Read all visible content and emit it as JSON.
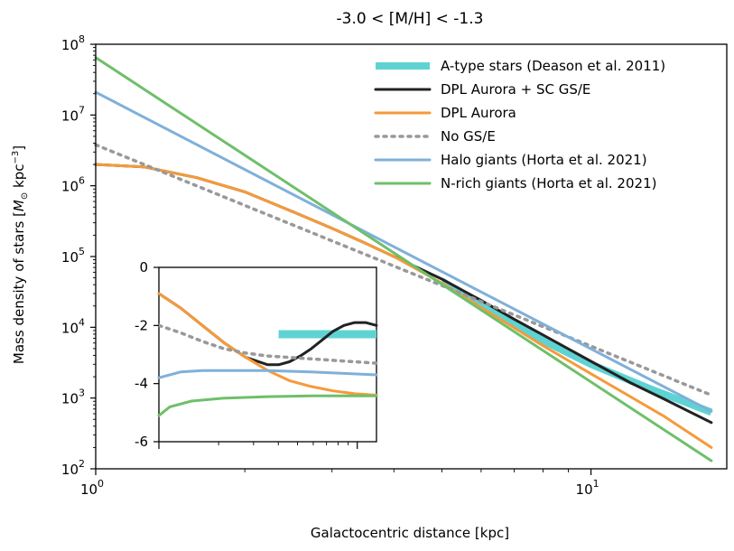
{
  "chart_data": {
    "type": "line",
    "title": "-3.0 < [M/H] < -1.3",
    "xlabel": "Galactocentric distance [kpc]",
    "ylabel": "Mass density of stars [M⊙ kpc−3]",
    "xscale": "log",
    "yscale": "log",
    "xlim": [
      1,
      18.8
    ],
    "ylim": [
      100,
      100000000
    ],
    "x_major_ticks": [
      {
        "value": 1,
        "base": "10",
        "exp": "0"
      },
      {
        "value": 10,
        "base": "10",
        "exp": "1"
      }
    ],
    "y_major_ticks": [
      {
        "value": 100,
        "base": "10",
        "exp": "2"
      },
      {
        "value": 1000,
        "base": "10",
        "exp": "3"
      },
      {
        "value": 10000,
        "base": "10",
        "exp": "4"
      },
      {
        "value": 100000,
        "base": "10",
        "exp": "5"
      },
      {
        "value": 1000000,
        "base": "10",
        "exp": "6"
      },
      {
        "value": 10000000,
        "base": "10",
        "exp": "7"
      },
      {
        "value": 100000000,
        "base": "10",
        "exp": "8"
      }
    ],
    "legend_position": "top-right",
    "series": [
      {
        "name": "A-type stars (Deason et al. 2011)",
        "color": "#5fd3d3",
        "dash": "solid",
        "style": "thick",
        "x": [
          5,
          6,
          8,
          10,
          13,
          17.5
        ],
        "y": [
          45000,
          20000,
          6500,
          3000,
          1400,
          630
        ]
      },
      {
        "name": "DPL Aurora + SC GS/E",
        "color": "#222222",
        "dash": "solid",
        "style": "normal",
        "x": [
          1,
          1.25,
          1.6,
          2,
          2.5,
          3,
          3.5,
          4,
          5,
          6,
          7,
          8,
          10,
          12,
          14,
          17.5
        ],
        "y": [
          2000000,
          1850000,
          1300000,
          820000,
          430000,
          250000,
          155000,
          100000,
          48000,
          24000,
          13000,
          7800,
          3300,
          1650,
          980,
          450
        ]
      },
      {
        "name": "DPL Aurora",
        "color": "#f59a3a",
        "dash": "solid",
        "style": "normal",
        "x": [
          1,
          1.25,
          1.6,
          2,
          2.5,
          3,
          3.5,
          4,
          5,
          6,
          7,
          8,
          10,
          12,
          14,
          17.5
        ],
        "y": [
          2000000,
          1850000,
          1300000,
          820000,
          430000,
          250000,
          155000,
          100000,
          42000,
          19000,
          9800,
          5500,
          2200,
          1050,
          560,
          200
        ]
      },
      {
        "name": "No GS/E",
        "color": "#999999",
        "dash": "dotted",
        "style": "normal",
        "x": [
          1,
          17.5
        ],
        "y": [
          3800000,
          1100
        ]
      },
      {
        "name": "Halo giants (Horta et al. 2021)",
        "color": "#7fb0d9",
        "dash": "solid",
        "style": "normal",
        "x": [
          1,
          17.5
        ],
        "y": [
          21000000,
          650
        ]
      },
      {
        "name": "N-rich giants (Horta et al. 2021)",
        "color": "#6fbf6a",
        "dash": "solid",
        "style": "normal",
        "x": [
          1,
          17.5
        ],
        "y": [
          65000000,
          130
        ]
      }
    ],
    "inset": {
      "ylim": [
        -6,
        0
      ],
      "y_ticks": [
        "0",
        "-2",
        "-4",
        "-6"
      ],
      "y_tick_values": [
        0,
        -2,
        -4,
        -6
      ],
      "series": [
        {
          "name": "A-type stars (Deason et al. 2011)",
          "color": "#5fd3d3",
          "style": "thick",
          "x": [
            0.55,
            1
          ],
          "y": [
            -2.3,
            -2.3
          ]
        },
        {
          "name": "DPL Aurora + SC GS/E",
          "color": "#222222",
          "style": "normal",
          "x": [
            0,
            0.1,
            0.2,
            0.3,
            0.4,
            0.5,
            0.55,
            0.6,
            0.65,
            0.7,
            0.75,
            0.8,
            0.85,
            0.9,
            0.95,
            1
          ],
          "y": [
            -0.9,
            -1.4,
            -2.0,
            -2.6,
            -3.1,
            -3.35,
            -3.35,
            -3.25,
            -3.05,
            -2.8,
            -2.5,
            -2.2,
            -2.0,
            -1.9,
            -1.9,
            -2.0
          ]
        },
        {
          "name": "DPL Aurora",
          "color": "#f59a3a",
          "style": "normal",
          "x": [
            0,
            0.1,
            0.2,
            0.3,
            0.4,
            0.5,
            0.6,
            0.7,
            0.8,
            0.9,
            1
          ],
          "y": [
            -0.9,
            -1.4,
            -2.0,
            -2.6,
            -3.1,
            -3.55,
            -3.9,
            -4.1,
            -4.25,
            -4.35,
            -4.4
          ]
        },
        {
          "name": "No GS/E",
          "color": "#999999",
          "style": "dotted",
          "x": [
            0,
            0.1,
            0.2,
            0.3,
            0.4,
            0.5,
            0.6,
            0.7,
            0.8,
            0.9,
            1
          ],
          "y": [
            -2.0,
            -2.25,
            -2.55,
            -2.8,
            -2.95,
            -3.05,
            -3.1,
            -3.15,
            -3.2,
            -3.25,
            -3.3
          ]
        },
        {
          "name": "Halo giants (Horta et al. 2021)",
          "color": "#7fb0d9",
          "style": "normal",
          "x": [
            0,
            0.1,
            0.2,
            0.3,
            0.5,
            0.7,
            0.85,
            1
          ],
          "y": [
            -3.8,
            -3.6,
            -3.55,
            -3.55,
            -3.55,
            -3.6,
            -3.65,
            -3.7
          ]
        },
        {
          "name": "N-rich giants (Horta et al. 2021)",
          "color": "#6fbf6a",
          "style": "normal",
          "x": [
            0,
            0.05,
            0.15,
            0.3,
            0.5,
            0.7,
            1
          ],
          "y": [
            -5.1,
            -4.8,
            -4.6,
            -4.5,
            -4.45,
            -4.42,
            -4.42
          ]
        }
      ]
    }
  }
}
